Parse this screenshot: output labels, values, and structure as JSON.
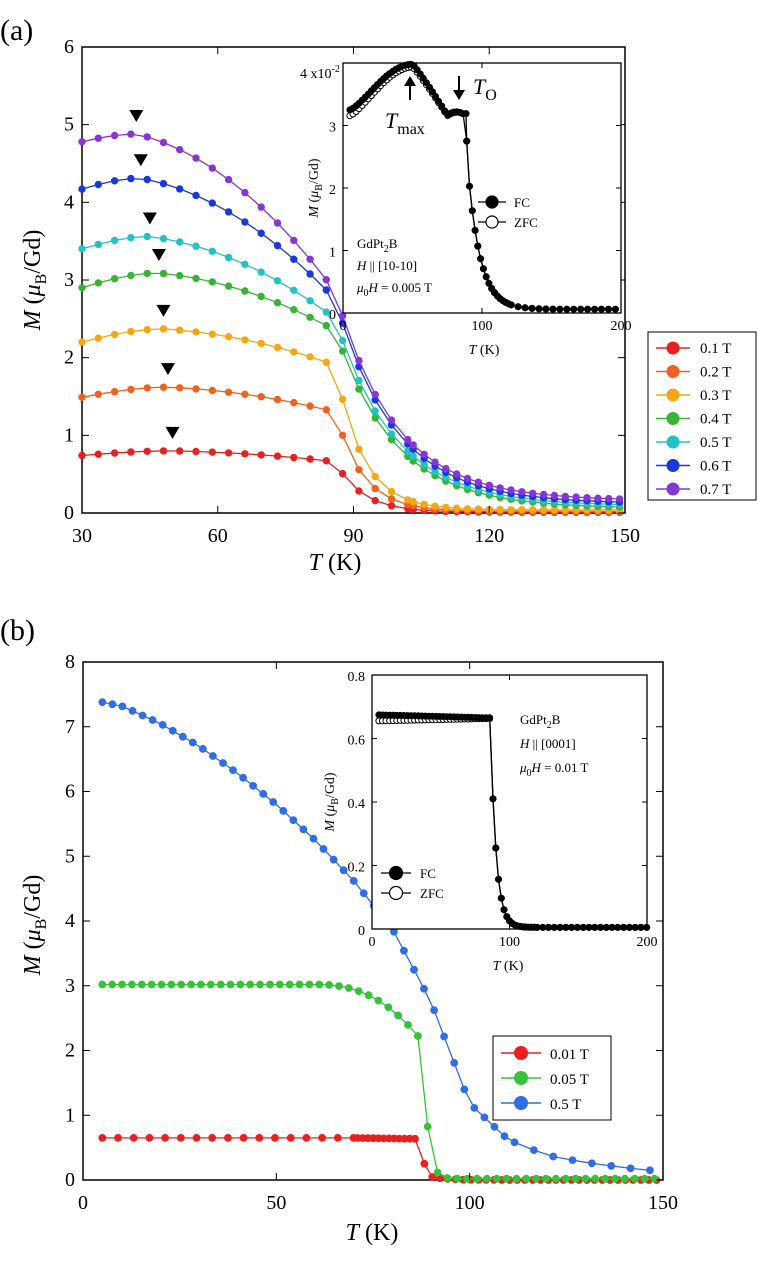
{
  "panel_a": {
    "label": "(a)",
    "chart_data": {
      "type": "line",
      "xlabel": "T (K)",
      "ylabel": "M (μB/Gd)",
      "xlim": [
        30,
        150
      ],
      "ylim": [
        0,
        6
      ],
      "xticks": [
        30,
        60,
        90,
        120,
        150
      ],
      "yticks": [
        0,
        1,
        2,
        3,
        4,
        5,
        6
      ],
      "legend_position": "right-outside",
      "markers": "filled circles with connecting lines",
      "peak_marker": "filled down-triangle",
      "series": [
        {
          "name": "0.1 T",
          "color": "#e8201f",
          "Tmax": 50,
          "Mmax": 0.8,
          "M30": 0.74,
          "M70": 0.72,
          "M86": 0.66,
          "M150": 0.01
        },
        {
          "name": "0.2 T",
          "color": "#f0621d",
          "Tmax": 49,
          "Mmax": 1.62,
          "M30": 1.49,
          "M70": 1.43,
          "M86": 1.3,
          "M150": 0.02
        },
        {
          "name": "0.3 T",
          "color": "#f5a712",
          "Tmax": 48,
          "Mmax": 2.37,
          "M30": 2.2,
          "M70": 2.1,
          "M86": 1.9,
          "M150": 0.04
        },
        {
          "name": "0.4 T",
          "color": "#36b535",
          "Tmax": 47,
          "Mmax": 3.09,
          "M30": 2.9,
          "M70": 2.76,
          "M86": 2.35,
          "M150": 0.06
        },
        {
          "name": "0.5 T",
          "color": "#22c2c6",
          "Tmax": 45,
          "Mmax": 3.56,
          "M30": 3.4,
          "M70": 3.3,
          "M86": 2.5,
          "M150": 0.09
        },
        {
          "name": "0.6 T",
          "color": "#1838dd",
          "Tmax": 43,
          "Mmax": 4.31,
          "M30": 4.17,
          "M70": 3.55,
          "M86": 2.75,
          "M150": 0.12
        },
        {
          "name": "0.7 T",
          "color": "#8835d8",
          "Tmax": 42,
          "Mmax": 4.88,
          "M30": 4.78,
          "M70": 3.6,
          "M86": 2.85,
          "M150": 0.16
        }
      ]
    },
    "inset": {
      "ytick_prefix": "4 x10",
      "ytick_exp": "-2",
      "xticks": [
        0,
        100,
        200
      ],
      "yticks": [
        0,
        1,
        2,
        3
      ],
      "xlim": [
        0,
        200
      ],
      "ylim": [
        0,
        4
      ],
      "xlabel": "T (K)",
      "ylabel": "M (μB/Gd)",
      "compound": "GdPt2B",
      "field_dir": "H || [10-10]",
      "field": "μ0H = 0.005 T",
      "arrow_tmax": "Tmax",
      "arrow_to": "TO",
      "Tmax": 50,
      "TO": 88,
      "legend": [
        "FC",
        "ZFC"
      ]
    }
  },
  "panel_b": {
    "label": "(b)",
    "chart_data": {
      "type": "line",
      "xlabel": "T (K)",
      "ylabel": "M (μB/Gd)",
      "xlim": [
        0,
        150
      ],
      "ylim": [
        0,
        8
      ],
      "xticks": [
        0,
        50,
        100,
        150
      ],
      "yticks": [
        0,
        1,
        2,
        3,
        4,
        5,
        6,
        7,
        8
      ],
      "legend_position": "inside-lower-right",
      "series": [
        {
          "name": "0.01 T",
          "color": "#e8201f",
          "M_low": 0.65,
          "Tc": 88,
          "M150": 0.0
        },
        {
          "name": "0.05 T",
          "color": "#36c33a",
          "M_low": 3.02,
          "Tc": 88,
          "M150": 0.02
        },
        {
          "name": "0.5 T",
          "color": "#2f6ee6",
          "x": [
            5,
            10,
            20,
            30,
            40,
            50,
            60,
            70,
            80,
            90,
            100,
            110,
            120,
            130,
            140,
            150
          ],
          "y": [
            7.38,
            7.32,
            7.05,
            6.7,
            6.28,
            5.8,
            5.25,
            4.62,
            3.88,
            2.75,
            1.18,
            0.62,
            0.38,
            0.27,
            0.19,
            0.13
          ]
        }
      ]
    },
    "inset": {
      "xticks": [
        0,
        100,
        200
      ],
      "yticks": [
        "0",
        "0.2",
        "0.4",
        "0.6",
        "0.8"
      ],
      "xlim": [
        0,
        200
      ],
      "ylim": [
        0,
        0.8
      ],
      "xlabel": "T (K)",
      "ylabel": "M (μB/Gd)",
      "compound": "GdPt2B",
      "field_dir": "H || [0001]",
      "field": "μ0H = 0.01 T",
      "legend": [
        "FC",
        "ZFC"
      ]
    }
  }
}
